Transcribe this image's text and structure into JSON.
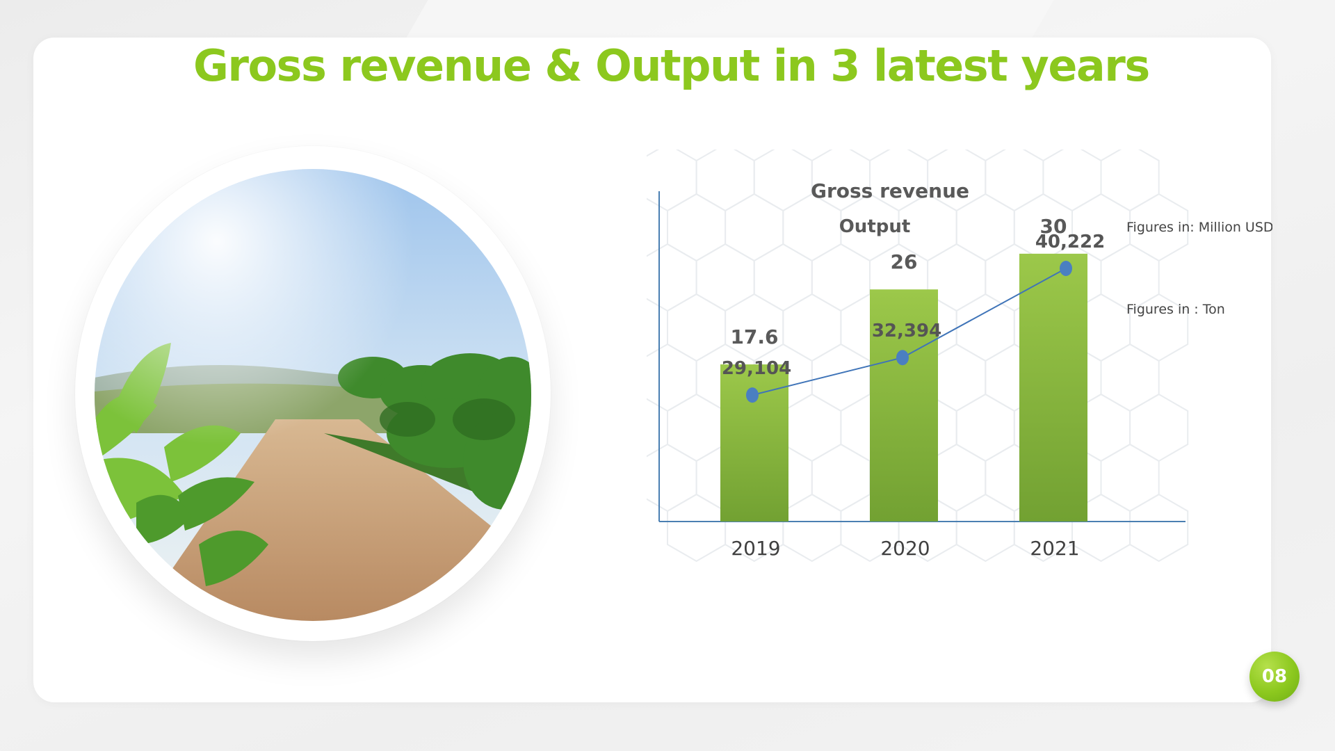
{
  "slide": {
    "title": "Gross revenue & Output in 3 latest years",
    "page_number": "08"
  },
  "colors": {
    "accent_green": "#8cc81e",
    "bar_green": "#8bc040",
    "line_blue": "#3f74b8",
    "label_gray": "#595959"
  },
  "chart_data": {
    "type": "bar",
    "categories": [
      "2019",
      "2020",
      "2021"
    ],
    "series": [
      {
        "name": "Gross revenue",
        "type": "bar",
        "unit_note": "Figures in: Million USD",
        "values": [
          17.6,
          26,
          30
        ],
        "value_labels": [
          "17.6",
          "26",
          "30"
        ]
      },
      {
        "name": "Output",
        "type": "line",
        "unit_note": "Figures in : Ton",
        "values": [
          29104,
          32394,
          40222
        ],
        "value_labels": [
          "29,104",
          "32,394",
          "40,222"
        ]
      }
    ],
    "ylim_bars": [
      0,
      37
    ],
    "ylim_line": [
      18000,
      47000
    ],
    "grid": false,
    "legend": [
      "Gross revenue",
      "Output"
    ]
  }
}
